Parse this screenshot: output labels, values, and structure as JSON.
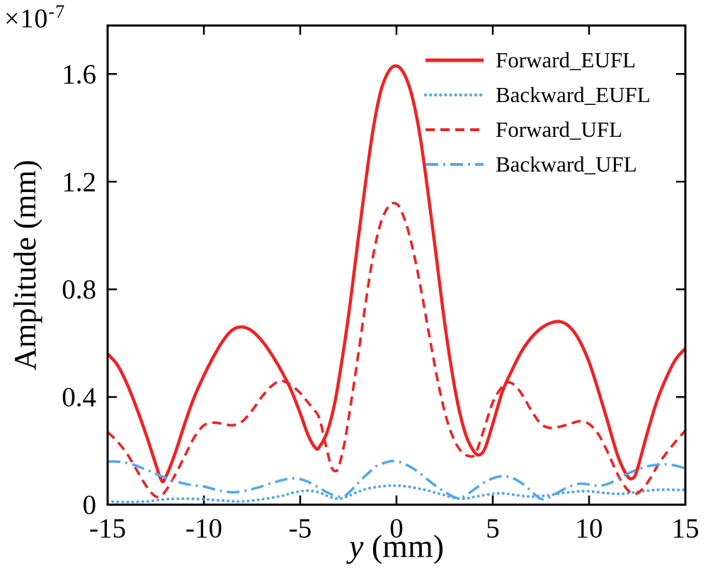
{
  "chart": {
    "background": "#ffffff",
    "frame_color": "#000000",
    "y_offset_base": "×10",
    "y_offset_exp": "-7"
  },
  "chart_data": {
    "type": "line",
    "title": "",
    "xlabel_var": "y",
    "xlabel_rest": " (mm)",
    "ylabel": "Amplitude (mm)",
    "y_scale_factor": "1e-7",
    "xlim": [
      -15,
      15
    ],
    "ylim": [
      0,
      1.78
    ],
    "xticks": [
      -15,
      -10,
      -5,
      0,
      5,
      10,
      15
    ],
    "xticklabels": [
      "-15",
      "-10",
      "-5",
      "0",
      "5",
      "10",
      "15"
    ],
    "yticks": [
      0,
      0.4,
      0.8,
      1.2,
      1.6
    ],
    "yticklabels": [
      "0",
      "0.4",
      "0.8",
      "1.2",
      "1.6"
    ],
    "grid": false,
    "legend_position": "top-right",
    "series": [
      {
        "name": "Forward_EUFL",
        "color": "#ee2224",
        "style": "solid",
        "points": [
          [
            -15,
            0.56
          ],
          [
            -14.5,
            0.52
          ],
          [
            -14,
            0.45
          ],
          [
            -13.5,
            0.36
          ],
          [
            -13,
            0.26
          ],
          [
            -12.5,
            0.15
          ],
          [
            -12.2,
            0.09
          ],
          [
            -12,
            0.1
          ],
          [
            -11.5,
            0.19
          ],
          [
            -11,
            0.3
          ],
          [
            -10.5,
            0.4
          ],
          [
            -10,
            0.48
          ],
          [
            -9.5,
            0.55
          ],
          [
            -9,
            0.61
          ],
          [
            -8.5,
            0.65
          ],
          [
            -8,
            0.66
          ],
          [
            -7.5,
            0.645
          ],
          [
            -7,
            0.61
          ],
          [
            -6.5,
            0.56
          ],
          [
            -6,
            0.5
          ],
          [
            -5.5,
            0.43
          ],
          [
            -5,
            0.34
          ],
          [
            -4.6,
            0.26
          ],
          [
            -4.2,
            0.21
          ],
          [
            -4,
            0.215
          ],
          [
            -3.6,
            0.27
          ],
          [
            -3.2,
            0.38
          ],
          [
            -2.8,
            0.55
          ],
          [
            -2.4,
            0.75
          ],
          [
            -2,
            0.98
          ],
          [
            -1.6,
            1.2
          ],
          [
            -1.2,
            1.4
          ],
          [
            -0.8,
            1.54
          ],
          [
            -0.4,
            1.61
          ],
          [
            0,
            1.63
          ],
          [
            0.4,
            1.6
          ],
          [
            0.8,
            1.52
          ],
          [
            1.2,
            1.38
          ],
          [
            1.6,
            1.18
          ],
          [
            2,
            0.96
          ],
          [
            2.4,
            0.73
          ],
          [
            2.8,
            0.53
          ],
          [
            3.2,
            0.37
          ],
          [
            3.6,
            0.26
          ],
          [
            4,
            0.2
          ],
          [
            4.3,
            0.185
          ],
          [
            4.6,
            0.21
          ],
          [
            5,
            0.3
          ],
          [
            5.5,
            0.42
          ],
          [
            6,
            0.5
          ],
          [
            6.5,
            0.57
          ],
          [
            7,
            0.62
          ],
          [
            7.5,
            0.655
          ],
          [
            8,
            0.675
          ],
          [
            8.5,
            0.68
          ],
          [
            9,
            0.66
          ],
          [
            9.5,
            0.61
          ],
          [
            10,
            0.53
          ],
          [
            10.5,
            0.42
          ],
          [
            11,
            0.3
          ],
          [
            11.5,
            0.18
          ],
          [
            12,
            0.105
          ],
          [
            12.3,
            0.1
          ],
          [
            12.5,
            0.13
          ],
          [
            13,
            0.26
          ],
          [
            13.5,
            0.38
          ],
          [
            14,
            0.47
          ],
          [
            14.5,
            0.54
          ],
          [
            15,
            0.58
          ]
        ]
      },
      {
        "name": "Backward_EUFL",
        "color": "#55a8e8",
        "style": "dotted",
        "points": [
          [
            -15,
            0.012
          ],
          [
            -14,
            0.01
          ],
          [
            -13,
            0.012
          ],
          [
            -12,
            0.02
          ],
          [
            -11,
            0.022
          ],
          [
            -10,
            0.02
          ],
          [
            -9,
            0.015
          ],
          [
            -8,
            0.012
          ],
          [
            -7,
            0.02
          ],
          [
            -6,
            0.032
          ],
          [
            -5.5,
            0.042
          ],
          [
            -5,
            0.05
          ],
          [
            -4.5,
            0.052
          ],
          [
            -4,
            0.045
          ],
          [
            -3.5,
            0.03
          ],
          [
            -3,
            0.022
          ],
          [
            -2.5,
            0.032
          ],
          [
            -2,
            0.048
          ],
          [
            -1.5,
            0.06
          ],
          [
            -1,
            0.066
          ],
          [
            -0.5,
            0.07
          ],
          [
            0,
            0.071
          ],
          [
            0.5,
            0.068
          ],
          [
            1,
            0.062
          ],
          [
            1.5,
            0.055
          ],
          [
            2,
            0.045
          ],
          [
            2.5,
            0.035
          ],
          [
            3,
            0.025
          ],
          [
            3.5,
            0.022
          ],
          [
            4,
            0.028
          ],
          [
            4.5,
            0.035
          ],
          [
            5,
            0.04
          ],
          [
            5.5,
            0.042
          ],
          [
            6,
            0.038
          ],
          [
            6.5,
            0.033
          ],
          [
            7,
            0.03
          ],
          [
            7.5,
            0.032
          ],
          [
            8,
            0.036
          ],
          [
            8.5,
            0.042
          ],
          [
            9,
            0.046
          ],
          [
            9.5,
            0.05
          ],
          [
            10,
            0.05
          ],
          [
            10.5,
            0.046
          ],
          [
            11,
            0.042
          ],
          [
            11.5,
            0.04
          ],
          [
            12,
            0.042
          ],
          [
            12.5,
            0.048
          ],
          [
            13,
            0.052
          ],
          [
            13.5,
            0.055
          ],
          [
            14,
            0.056
          ],
          [
            14.5,
            0.055
          ],
          [
            15,
            0.055
          ]
        ]
      },
      {
        "name": "Forward_UFL",
        "color": "#ee2224",
        "style": "dashed",
        "points": [
          [
            -15,
            0.27
          ],
          [
            -14.5,
            0.235
          ],
          [
            -14,
            0.19
          ],
          [
            -13.5,
            0.13
          ],
          [
            -13,
            0.07
          ],
          [
            -12.6,
            0.035
          ],
          [
            -12.3,
            0.03
          ],
          [
            -12,
            0.05
          ],
          [
            -11.5,
            0.11
          ],
          [
            -11,
            0.18
          ],
          [
            -10.5,
            0.25
          ],
          [
            -10,
            0.295
          ],
          [
            -9.5,
            0.305
          ],
          [
            -9,
            0.3
          ],
          [
            -8.5,
            0.295
          ],
          [
            -8,
            0.31
          ],
          [
            -7.5,
            0.35
          ],
          [
            -7,
            0.4
          ],
          [
            -6.5,
            0.44
          ],
          [
            -6,
            0.46
          ],
          [
            -5.5,
            0.445
          ],
          [
            -5,
            0.415
          ],
          [
            -4.6,
            0.38
          ],
          [
            -4.3,
            0.355
          ],
          [
            -4,
            0.32
          ],
          [
            -3.7,
            0.23
          ],
          [
            -3.4,
            0.145
          ],
          [
            -3.2,
            0.125
          ],
          [
            -3,
            0.14
          ],
          [
            -2.7,
            0.23
          ],
          [
            -2.4,
            0.36
          ],
          [
            -2,
            0.55
          ],
          [
            -1.6,
            0.75
          ],
          [
            -1.2,
            0.93
          ],
          [
            -0.8,
            1.05
          ],
          [
            -0.4,
            1.11
          ],
          [
            -0.1,
            1.12
          ],
          [
            0.2,
            1.1
          ],
          [
            0.6,
            1.02
          ],
          [
            1,
            0.9
          ],
          [
            1.4,
            0.75
          ],
          [
            1.8,
            0.59
          ],
          [
            2.2,
            0.44
          ],
          [
            2.6,
            0.32
          ],
          [
            3,
            0.24
          ],
          [
            3.4,
            0.195
          ],
          [
            3.8,
            0.18
          ],
          [
            4.1,
            0.19
          ],
          [
            4.5,
            0.27
          ],
          [
            5,
            0.38
          ],
          [
            5.5,
            0.44
          ],
          [
            5.8,
            0.455
          ],
          [
            6.2,
            0.44
          ],
          [
            6.6,
            0.4
          ],
          [
            7,
            0.35
          ],
          [
            7.5,
            0.3
          ],
          [
            8,
            0.285
          ],
          [
            8.5,
            0.29
          ],
          [
            9,
            0.3
          ],
          [
            9.5,
            0.31
          ],
          [
            10,
            0.3
          ],
          [
            10.5,
            0.26
          ],
          [
            11,
            0.19
          ],
          [
            11.5,
            0.11
          ],
          [
            12,
            0.055
          ],
          [
            12.4,
            0.04
          ],
          [
            12.8,
            0.06
          ],
          [
            13.2,
            0.1
          ],
          [
            13.6,
            0.15
          ],
          [
            14,
            0.19
          ],
          [
            14.5,
            0.235
          ],
          [
            15,
            0.275
          ]
        ]
      },
      {
        "name": "Backward_UFL",
        "color": "#55a8e8",
        "style": "dashdot",
        "points": [
          [
            -15,
            0.16
          ],
          [
            -14.5,
            0.16
          ],
          [
            -14,
            0.155
          ],
          [
            -13.5,
            0.145
          ],
          [
            -13,
            0.13
          ],
          [
            -12.5,
            0.115
          ],
          [
            -12,
            0.1
          ],
          [
            -11.5,
            0.088
          ],
          [
            -11,
            0.078
          ],
          [
            -10.5,
            0.072
          ],
          [
            -10,
            0.068
          ],
          [
            -9.5,
            0.058
          ],
          [
            -9,
            0.05
          ],
          [
            -8.5,
            0.046
          ],
          [
            -8,
            0.05
          ],
          [
            -7.5,
            0.058
          ],
          [
            -7,
            0.068
          ],
          [
            -6.5,
            0.08
          ],
          [
            -6,
            0.09
          ],
          [
            -5.5,
            0.098
          ],
          [
            -5,
            0.095
          ],
          [
            -4.5,
            0.082
          ],
          [
            -4,
            0.062
          ],
          [
            -3.5,
            0.042
          ],
          [
            -3,
            0.03
          ],
          [
            -2.7,
            0.032
          ],
          [
            -2.4,
            0.05
          ],
          [
            -2,
            0.08
          ],
          [
            -1.5,
            0.115
          ],
          [
            -1,
            0.145
          ],
          [
            -0.5,
            0.158
          ],
          [
            -0.2,
            0.162
          ],
          [
            0.2,
            0.158
          ],
          [
            0.6,
            0.145
          ],
          [
            1,
            0.128
          ],
          [
            1.5,
            0.1
          ],
          [
            2,
            0.072
          ],
          [
            2.5,
            0.048
          ],
          [
            3,
            0.028
          ],
          [
            3.3,
            0.025
          ],
          [
            3.6,
            0.035
          ],
          [
            4,
            0.055
          ],
          [
            4.5,
            0.08
          ],
          [
            5,
            0.098
          ],
          [
            5.5,
            0.106
          ],
          [
            6,
            0.1
          ],
          [
            6.5,
            0.08
          ],
          [
            7,
            0.05
          ],
          [
            7.4,
            0.025
          ],
          [
            7.7,
            0.02
          ],
          [
            8,
            0.03
          ],
          [
            8.5,
            0.05
          ],
          [
            9,
            0.068
          ],
          [
            9.5,
            0.078
          ],
          [
            10,
            0.075
          ],
          [
            10.5,
            0.07
          ],
          [
            11,
            0.078
          ],
          [
            11.5,
            0.095
          ],
          [
            12,
            0.115
          ],
          [
            12.5,
            0.13
          ],
          [
            13,
            0.142
          ],
          [
            13.5,
            0.148
          ],
          [
            14,
            0.15
          ],
          [
            14.5,
            0.145
          ],
          [
            15,
            0.135
          ]
        ]
      }
    ]
  }
}
